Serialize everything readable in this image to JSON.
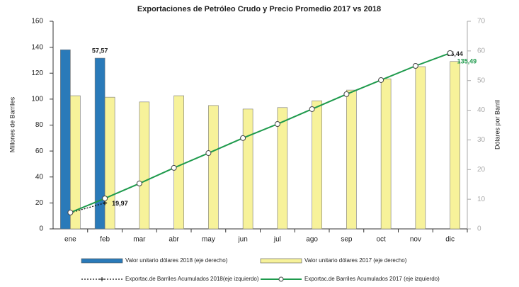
{
  "chart_data": {
    "type": "bar",
    "title": "Exportaciones de Petróleo Crudo y Precio Promedio 2017 vs 2018",
    "y_label": "Millones de Barriles",
    "y2_label": "Dólares por Barril",
    "categories": [
      "ene",
      "feb",
      "mar",
      "abr",
      "may",
      "jun",
      "jul",
      "ago",
      "sep",
      "oct",
      "nov",
      "dic"
    ],
    "ylim": [
      0,
      160
    ],
    "yticks": [
      0,
      20,
      40,
      60,
      80,
      100,
      120,
      140,
      160
    ],
    "y2lim": [
      0,
      70
    ],
    "y2ticks": [
      0,
      10,
      20,
      30,
      40,
      50,
      60,
      70
    ],
    "series": [
      {
        "name": "Valor unitario dólares 2018 (eje derecho)",
        "type": "bar",
        "axis": "y2",
        "color": "#2a7ab9",
        "values": [
          60.4,
          57.57,
          null,
          null,
          null,
          null,
          null,
          null,
          null,
          null,
          null,
          null
        ],
        "value_labels": [
          null,
          "57,57",
          null,
          null,
          null,
          null,
          null,
          null,
          null,
          null,
          null,
          null
        ]
      },
      {
        "name": "Valor unitario dólares 2017 (eje derecho)",
        "type": "bar",
        "axis": "y2",
        "color": "#f7f29a",
        "values": [
          44.9,
          44.4,
          42.8,
          44.9,
          41.6,
          40.4,
          40.9,
          43.2,
          46.8,
          50.6,
          54.7,
          56.44
        ],
        "value_labels": [
          null,
          null,
          null,
          null,
          null,
          null,
          null,
          null,
          null,
          null,
          null,
          "56,44"
        ]
      },
      {
        "name": "Exportac.de Barriles Acumulados 2018(eje izquierdo)",
        "type": "line",
        "color": "#111111",
        "dashed": true,
        "marker": "plus",
        "values": [
          12.4,
          19.97,
          null,
          null,
          null,
          null,
          null,
          null,
          null,
          null,
          null,
          null
        ],
        "value_labels": [
          null,
          "19,97",
          null,
          null,
          null,
          null,
          null,
          null,
          null,
          null,
          null,
          null
        ]
      },
      {
        "name": "Exportac.de Barriles Acumulados 2017 (eje izquierdo)",
        "type": "line",
        "color": "#1e9a4c",
        "marker": "circle",
        "values": [
          12.6,
          23.5,
          35,
          47,
          58.4,
          70,
          80.8,
          92.3,
          103.8,
          114.7,
          125.6,
          135.49
        ],
        "value_labels": [
          null,
          null,
          null,
          null,
          null,
          null,
          null,
          null,
          null,
          null,
          null,
          "135,49"
        ]
      }
    ]
  }
}
